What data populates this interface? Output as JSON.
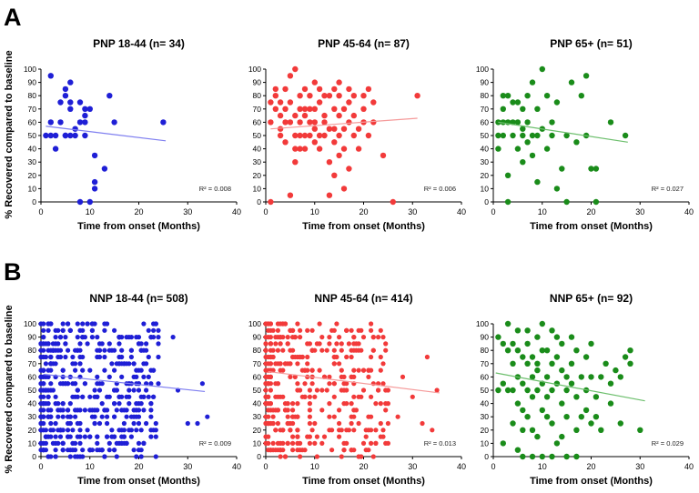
{
  "figure": {
    "panel_labels": [
      "A",
      "B"
    ],
    "y_axis_label": "% Recovered compared to baseline"
  },
  "colors": {
    "blue": "#1f1fd6",
    "red": "#f23a3a",
    "green": "#1a8c1a",
    "blue_line": "#7f7ff0",
    "red_line": "#f59a9a",
    "green_line": "#6dbf6d",
    "axis": "#000000"
  },
  "chart_data": [
    {
      "type": "scatter",
      "row": "A",
      "title": "PNP 18-44 (n= 34)",
      "xlabel": "Time from onset (Months)",
      "ylabel": "% Recovered compared to baseline",
      "xlim": [
        0,
        40
      ],
      "ylim": [
        0,
        100
      ],
      "xticks": [
        "0",
        "10",
        "20",
        "30",
        "40"
      ],
      "yticks": [
        "0",
        "10",
        "20",
        "30",
        "40",
        "50",
        "60",
        "70",
        "80",
        "90",
        "100"
      ],
      "color": "blue",
      "r2_label": "R² = 0.008",
      "trend": {
        "x": [
          1,
          25.5
        ],
        "y": [
          57,
          46
        ]
      },
      "points": [
        [
          1,
          50
        ],
        [
          2,
          95
        ],
        [
          2,
          60
        ],
        [
          2,
          50
        ],
        [
          3,
          40
        ],
        [
          3,
          50
        ],
        [
          4,
          75
        ],
        [
          4,
          60
        ],
        [
          5,
          85
        ],
        [
          5,
          80
        ],
        [
          5,
          50
        ],
        [
          5,
          50
        ],
        [
          6,
          90
        ],
        [
          6,
          75
        ],
        [
          6,
          70
        ],
        [
          6,
          50
        ],
        [
          7,
          55
        ],
        [
          7,
          50
        ],
        [
          8,
          60
        ],
        [
          8,
          75
        ],
        [
          8,
          0
        ],
        [
          9,
          60
        ],
        [
          9,
          65
        ],
        [
          9,
          70
        ],
        [
          9,
          50
        ],
        [
          10,
          70
        ],
        [
          10,
          0
        ],
        [
          11,
          35
        ],
        [
          11,
          15
        ],
        [
          11,
          10
        ],
        [
          13,
          25
        ],
        [
          14,
          80
        ],
        [
          15,
          60
        ],
        [
          25,
          60
        ]
      ]
    },
    {
      "type": "scatter",
      "row": "A",
      "title": "PNP 45-64 (n= 87)",
      "xlabel": "Time from onset (Months)",
      "ylabel": "",
      "xlim": [
        0,
        40
      ],
      "ylim": [
        0,
        100
      ],
      "xticks": [
        "0",
        "10",
        "20",
        "30",
        "40"
      ],
      "yticks": [
        "0",
        "10",
        "20",
        "30",
        "40",
        "50",
        "60",
        "70",
        "80",
        "90",
        "100"
      ],
      "color": "red",
      "r2_label": "R² = 0.006",
      "trend": {
        "x": [
          1,
          31
        ],
        "y": [
          55,
          63
        ]
      },
      "points": [
        [
          1,
          0
        ],
        [
          1,
          75
        ],
        [
          2,
          70
        ],
        [
          2,
          80
        ],
        [
          3,
          75
        ],
        [
          3,
          55
        ],
        [
          3,
          50
        ],
        [
          4,
          60
        ],
        [
          4,
          85
        ],
        [
          4,
          70
        ],
        [
          5,
          95
        ],
        [
          5,
          5
        ],
        [
          5,
          60
        ],
        [
          6,
          100
        ],
        [
          6,
          40
        ],
        [
          6,
          50
        ],
        [
          6,
          30
        ],
        [
          7,
          60
        ],
        [
          7,
          70
        ],
        [
          7,
          50
        ],
        [
          7,
          80
        ],
        [
          8,
          65
        ],
        [
          8,
          50
        ],
        [
          8,
          40
        ],
        [
          8,
          70
        ],
        [
          9,
          60
        ],
        [
          9,
          50
        ],
        [
          9,
          80
        ],
        [
          10,
          90
        ],
        [
          10,
          55
        ],
        [
          10,
          60
        ],
        [
          10,
          70
        ],
        [
          11,
          50
        ],
        [
          11,
          75
        ],
        [
          11,
          40
        ],
        [
          12,
          50
        ],
        [
          12,
          65
        ],
        [
          12,
          60
        ],
        [
          13,
          80
        ],
        [
          13,
          30
        ],
        [
          13,
          5
        ],
        [
          14,
          70
        ],
        [
          14,
          55
        ],
        [
          14,
          45
        ],
        [
          14,
          20
        ],
        [
          15,
          90
        ],
        [
          15,
          65
        ],
        [
          15,
          50
        ],
        [
          15,
          80
        ],
        [
          16,
          10
        ],
        [
          16,
          40
        ],
        [
          16,
          70
        ],
        [
          17,
          60
        ],
        [
          17,
          75
        ],
        [
          17,
          25
        ],
        [
          18,
          80
        ],
        [
          18,
          50
        ],
        [
          19,
          55
        ],
        [
          20,
          70
        ],
        [
          20,
          60
        ],
        [
          21,
          85
        ],
        [
          22,
          60
        ],
        [
          24,
          35
        ],
        [
          1,
          60
        ],
        [
          2,
          85
        ],
        [
          3,
          65
        ],
        [
          4,
          45
        ],
        [
          5,
          75
        ],
        [
          6,
          65
        ],
        [
          7,
          40
        ],
        [
          8,
          85
        ],
        [
          9,
          70
        ],
        [
          10,
          45
        ],
        [
          11,
          85
        ],
        [
          12,
          80
        ],
        [
          13,
          55
        ],
        [
          14,
          85
        ],
        [
          15,
          35
        ],
        [
          16,
          55
        ],
        [
          17,
          85
        ],
        [
          18,
          65
        ],
        [
          19,
          40
        ],
        [
          20,
          80
        ],
        [
          22,
          75
        ],
        [
          26,
          0
        ],
        [
          31,
          80
        ],
        [
          21,
          50
        ]
      ]
    },
    {
      "type": "scatter",
      "row": "A",
      "title": "PNP 65+ (n= 51)",
      "xlabel": "Time from onset (Months)",
      "ylabel": "",
      "xlim": [
        0,
        40
      ],
      "ylim": [
        0,
        100
      ],
      "xticks": [
        "0",
        "10",
        "20",
        "30",
        "40"
      ],
      "yticks": [
        "0",
        "10",
        "20",
        "30",
        "40",
        "50",
        "60",
        "70",
        "80",
        "90",
        "100"
      ],
      "color": "green",
      "r2_label": "R² = 0.027",
      "trend": {
        "x": [
          1,
          27.5
        ],
        "y": [
          60,
          45
        ]
      },
      "points": [
        [
          1,
          60
        ],
        [
          1,
          40
        ],
        [
          1,
          50
        ],
        [
          2,
          80
        ],
        [
          2,
          70
        ],
        [
          2,
          60
        ],
        [
          2,
          50
        ],
        [
          3,
          20
        ],
        [
          3,
          80
        ],
        [
          3,
          60
        ],
        [
          3,
          0
        ],
        [
          4,
          75
        ],
        [
          4,
          50
        ],
        [
          4,
          60
        ],
        [
          5,
          75
        ],
        [
          5,
          40
        ],
        [
          5,
          60
        ],
        [
          6,
          55
        ],
        [
          6,
          70
        ],
        [
          6,
          50
        ],
        [
          6,
          30
        ],
        [
          7,
          60
        ],
        [
          7,
          80
        ],
        [
          7,
          45
        ],
        [
          8,
          35
        ],
        [
          8,
          90
        ],
        [
          8,
          50
        ],
        [
          9,
          70
        ],
        [
          9,
          50
        ],
        [
          9,
          15
        ],
        [
          10,
          55
        ],
        [
          10,
          100
        ],
        [
          11,
          80
        ],
        [
          11,
          40
        ],
        [
          12,
          50
        ],
        [
          12,
          60
        ],
        [
          13,
          75
        ],
        [
          13,
          10
        ],
        [
          14,
          25
        ],
        [
          15,
          50
        ],
        [
          15,
          0
        ],
        [
          16,
          90
        ],
        [
          17,
          45
        ],
        [
          18,
          80
        ],
        [
          19,
          95
        ],
        [
          19,
          50
        ],
        [
          20,
          25
        ],
        [
          21,
          25
        ],
        [
          24,
          60
        ],
        [
          27,
          50
        ],
        [
          21,
          0
        ]
      ]
    },
    {
      "type": "scatter",
      "row": "B",
      "title": "NNP 18-44 (n= 508)",
      "xlabel": "Time from onset (Months)",
      "ylabel": "% Recovered compared to baseline",
      "xlim": [
        0,
        40
      ],
      "ylim": [
        0,
        100
      ],
      "xticks": [
        "0",
        "10",
        "20",
        "30",
        "40"
      ],
      "yticks": [
        "0",
        "10",
        "20",
        "30",
        "40",
        "50",
        "60",
        "70",
        "80",
        "90",
        "100"
      ],
      "color": "blue",
      "r2_label": "R² = 0.009",
      "trend": {
        "x": [
          0.5,
          33.5
        ],
        "y": [
          62,
          49
        ]
      },
      "dense": true
    },
    {
      "type": "scatter",
      "row": "B",
      "title": "NNP 45-64 (n= 414)",
      "xlabel": "Time from onset (Months)",
      "ylabel": "",
      "xlim": [
        0,
        40
      ],
      "ylim": [
        0,
        100
      ],
      "xticks": [
        "0",
        "10",
        "20",
        "30",
        "40"
      ],
      "yticks": [
        "0",
        "10",
        "20",
        "30",
        "40",
        "50",
        "60",
        "70",
        "80",
        "90",
        "100"
      ],
      "color": "red",
      "r2_label": "R² = 0.013",
      "trend": {
        "x": [
          0.5,
          35.5
        ],
        "y": [
          64,
          48
        ]
      },
      "dense": true
    },
    {
      "type": "scatter",
      "row": "B",
      "title": "NNP 65+ (n= 92)",
      "xlabel": "Time from onset (Months)",
      "ylabel": "",
      "xlim": [
        0,
        40
      ],
      "ylim": [
        0,
        100
      ],
      "xticks": [
        "0",
        "10",
        "20",
        "30",
        "40"
      ],
      "yticks": [
        "0",
        "10",
        "20",
        "30",
        "40",
        "50",
        "60",
        "70",
        "80",
        "90",
        "100"
      ],
      "color": "green",
      "r2_label": "R² = 0.029",
      "trend": {
        "x": [
          0.5,
          31
        ],
        "y": [
          63,
          42
        ]
      },
      "points": [
        [
          1,
          50
        ],
        [
          1,
          90
        ],
        [
          2,
          85
        ],
        [
          2,
          55
        ],
        [
          2,
          10
        ],
        [
          3,
          80
        ],
        [
          3,
          50
        ],
        [
          3,
          100
        ],
        [
          4,
          70
        ],
        [
          4,
          50
        ],
        [
          4,
          25
        ],
        [
          5,
          60
        ],
        [
          5,
          80
        ],
        [
          5,
          95
        ],
        [
          5,
          40
        ],
        [
          6,
          75
        ],
        [
          6,
          55
        ],
        [
          6,
          20
        ],
        [
          6,
          0
        ],
        [
          7,
          70
        ],
        [
          7,
          50
        ],
        [
          7,
          85
        ],
        [
          7,
          30
        ],
        [
          8,
          60
        ],
        [
          8,
          75
        ],
        [
          8,
          45
        ],
        [
          8,
          0
        ],
        [
          9,
          70
        ],
        [
          9,
          90
        ],
        [
          9,
          50
        ],
        [
          9,
          15
        ],
        [
          10,
          100
        ],
        [
          10,
          55
        ],
        [
          10,
          35
        ],
        [
          10,
          0
        ],
        [
          11,
          80
        ],
        [
          11,
          60
        ],
        [
          11,
          45
        ],
        [
          12,
          50
        ],
        [
          12,
          70
        ],
        [
          12,
          95
        ],
        [
          12,
          25
        ],
        [
          13,
          55
        ],
        [
          13,
          75
        ],
        [
          13,
          10
        ],
        [
          14,
          40
        ],
        [
          14,
          65
        ],
        [
          14,
          85
        ],
        [
          15,
          50
        ],
        [
          15,
          0
        ],
        [
          15,
          30
        ],
        [
          16,
          70
        ],
        [
          16,
          55
        ],
        [
          17,
          80
        ],
        [
          17,
          45
        ],
        [
          17,
          20
        ],
        [
          18,
          60
        ],
        [
          19,
          35
        ],
        [
          19,
          75
        ],
        [
          20,
          60
        ],
        [
          20,
          25
        ],
        [
          21,
          45
        ],
        [
          22,
          20
        ],
        [
          23,
          70
        ],
        [
          24,
          40
        ],
        [
          25,
          65
        ],
        [
          26,
          60
        ],
        [
          27,
          75
        ],
        [
          28,
          80
        ],
        [
          28,
          70
        ],
        [
          30,
          20
        ],
        [
          4,
          85
        ],
        [
          5,
          5
        ],
        [
          6,
          35
        ],
        [
          7,
          95
        ],
        [
          8,
          20
        ],
        [
          9,
          65
        ],
        [
          10,
          80
        ],
        [
          11,
          30
        ],
        [
          12,
          0
        ],
        [
          13,
          90
        ],
        [
          14,
          15
        ],
        [
          15,
          60
        ],
        [
          16,
          90
        ],
        [
          17,
          0
        ],
        [
          18,
          30
        ],
        [
          19,
          50
        ],
        [
          20,
          85
        ],
        [
          21,
          30
        ],
        [
          22,
          60
        ],
        [
          24,
          55
        ],
        [
          26,
          25
        ]
      ]
    }
  ]
}
